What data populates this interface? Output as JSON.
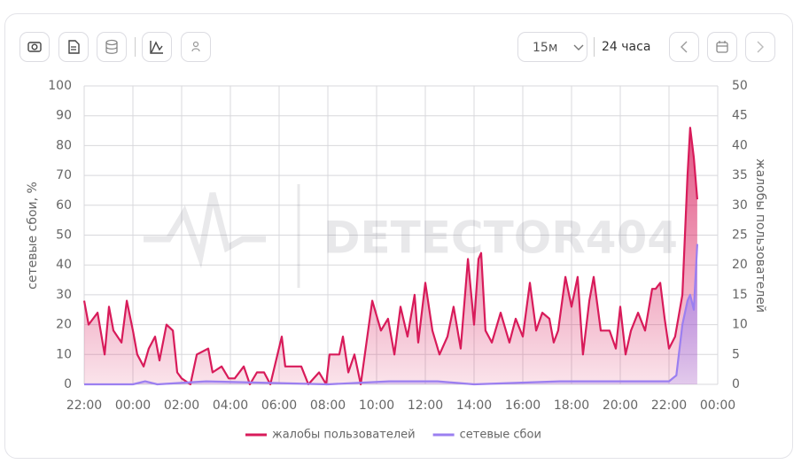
{
  "controls": {
    "interval": "15м",
    "range": "24 часа"
  },
  "chart_data": {
    "type": "line",
    "watermark": "DETECTOR404",
    "y_label": "сетевые сбои, %",
    "y2_label": "жалобы пользователей",
    "xlim": [
      0,
      26
    ],
    "xticks": [
      {
        "value": 0,
        "label": "22:00"
      },
      {
        "value": 2,
        "label": "00:00"
      },
      {
        "value": 4,
        "label": "02:00"
      },
      {
        "value": 6,
        "label": "04:00"
      },
      {
        "value": 8,
        "label": "06:00"
      },
      {
        "value": 10,
        "label": "08:00"
      },
      {
        "value": 12,
        "label": "10:00"
      },
      {
        "value": 14,
        "label": "12:00"
      },
      {
        "value": 16,
        "label": "14:00"
      },
      {
        "value": 18,
        "label": "16:00"
      },
      {
        "value": 20,
        "label": "18:00"
      },
      {
        "value": 22,
        "label": "20:00"
      },
      {
        "value": 24,
        "label": "22:00"
      },
      {
        "value": 26,
        "label": "00:00"
      }
    ],
    "ylim": [
      0,
      100
    ],
    "yticks": [
      0,
      10,
      20,
      30,
      40,
      50,
      60,
      70,
      80,
      90,
      100
    ],
    "y2lim": [
      0,
      50
    ],
    "y2ticks": [
      0,
      5,
      10,
      15,
      20,
      25,
      30,
      35,
      40,
      45,
      50
    ],
    "grid": true,
    "series": [
      {
        "name": "жалобы пользователей",
        "color": "#d81b5a",
        "axis": "y2",
        "x": [
          0,
          0.18,
          0.55,
          0.84,
          1.02,
          1.2,
          1.53,
          1.75,
          2,
          2.18,
          2.44,
          2.65,
          2.91,
          3.09,
          3.38,
          3.64,
          3.82,
          4,
          4.36,
          4.62,
          5.09,
          5.27,
          5.64,
          5.93,
          6.18,
          6.55,
          6.8,
          7.09,
          7.38,
          7.64,
          8.11,
          8.25,
          8.55,
          8.91,
          9.2,
          9.64,
          9.93,
          10.07,
          10.47,
          10.62,
          10.84,
          11.09,
          11.35,
          11.82,
          12.18,
          12.47,
          12.73,
          12.98,
          13.27,
          13.56,
          13.71,
          14,
          14.29,
          14.58,
          14.91,
          15.16,
          15.45,
          15.75,
          16,
          16.18,
          16.29,
          16.47,
          16.73,
          17.09,
          17.45,
          17.71,
          18,
          18.29,
          18.55,
          18.8,
          19.09,
          19.27,
          19.45,
          19.75,
          20,
          20.25,
          20.47,
          20.73,
          20.91,
          21.2,
          21.56,
          21.82,
          22,
          22.22,
          22.44,
          22.73,
          23.02,
          23.31,
          23.45,
          23.64,
          23.82,
          24,
          24.25,
          24.55,
          24.76,
          24.87,
          25.02,
          25.16
        ],
        "values": [
          14,
          10,
          12,
          5,
          13,
          9,
          7,
          14,
          9,
          5,
          3,
          6,
          8,
          4,
          10,
          9,
          2,
          1,
          0,
          5,
          6,
          2,
          3,
          1,
          1,
          3,
          0,
          2,
          2,
          0,
          8,
          3,
          3,
          3,
          0,
          2,
          0,
          5,
          5,
          8,
          2,
          5,
          0,
          14,
          9,
          11,
          5,
          13,
          8,
          15,
          7,
          17,
          9,
          5,
          8,
          13,
          6,
          21,
          10,
          21,
          22,
          9,
          7,
          12,
          7,
          11,
          8,
          17,
          9,
          12,
          11,
          7,
          9,
          18,
          13,
          18,
          5,
          14,
          18,
          9,
          9,
          6,
          13,
          5,
          9,
          12,
          9,
          16,
          16,
          17,
          11,
          6,
          8,
          15,
          35,
          43,
          38,
          31
        ]
      },
      {
        "name": "сетевые сбои",
        "color": "#9b7ff0",
        "axis": "y",
        "x": [
          0,
          2,
          2.5,
          3,
          5,
          10,
          12.5,
          14.5,
          16,
          19.5,
          21,
          23.5,
          24,
          24.3,
          24.55,
          24.76,
          24.87,
          25.02,
          25.16
        ],
        "values": [
          0,
          0,
          1,
          0,
          1,
          0,
          1,
          1,
          0,
          1,
          1,
          1,
          1,
          3,
          20,
          28,
          30,
          25,
          47
        ]
      }
    ],
    "legend": "bottom"
  }
}
